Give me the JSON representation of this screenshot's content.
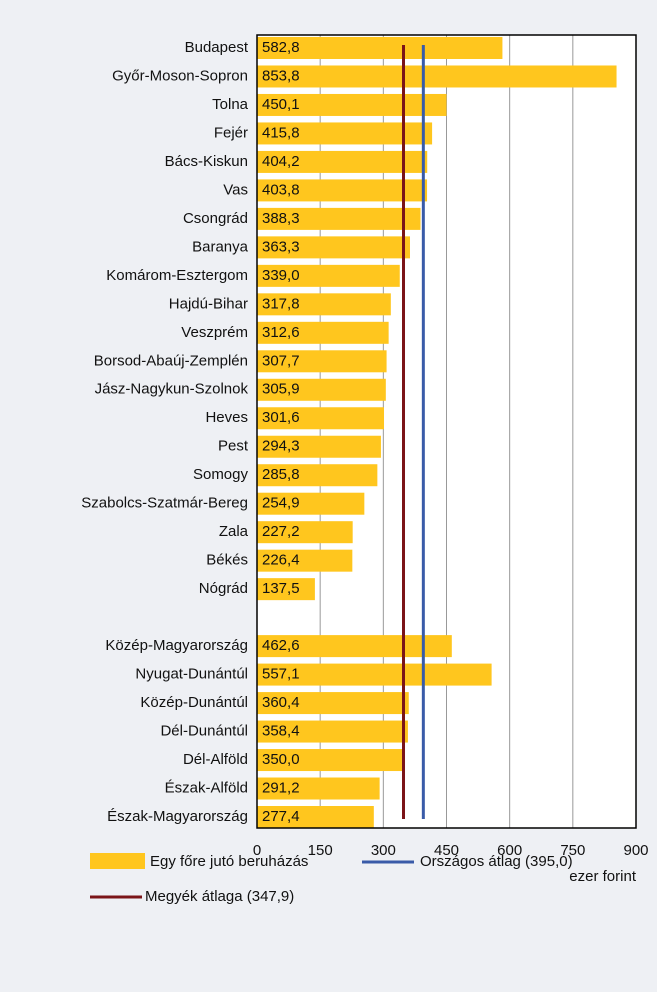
{
  "chart_data": {
    "type": "barh",
    "categories": [
      "Budapest",
      "Győr-Moson-Sopron",
      "Tolna",
      "Fejér",
      "Bács-Kiskun",
      "Vas",
      "Csongrád",
      "Baranya",
      "Komárom-Esztergom",
      "Hajdú-Bihar",
      "Veszprém",
      "Borsod-Abaúj-Zemplén",
      "Jász-Nagykun-Szolnok",
      "Heves",
      "Pest",
      "Somogy",
      "Szabolcs-Szatmár-Bereg",
      "Zala",
      "Békés",
      "Nógrád",
      null,
      "Közép-Magyarország",
      "Nyugat-Dunántúl",
      "Közép-Dunántúl",
      "Dél-Dunántúl",
      "Dél-Alföld",
      "Észak-Alföld",
      "Észak-Magyarország"
    ],
    "series": [
      {
        "name": "Egy főre jutó beruházás",
        "color": "#ffc61e",
        "values": [
          582.8,
          853.8,
          450.1,
          415.8,
          404.2,
          403.8,
          388.3,
          363.3,
          339.0,
          317.8,
          312.6,
          307.7,
          305.9,
          301.6,
          294.3,
          285.8,
          254.9,
          227.2,
          226.4,
          137.5,
          null,
          462.6,
          557.1,
          360.4,
          358.4,
          350.0,
          291.2,
          277.4
        ],
        "value_labels": [
          "582,8",
          "853,8",
          "450,1",
          "415,8",
          "404,2",
          "403,8",
          "388,3",
          "363,3",
          "339,0",
          "317,8",
          "312,6",
          "307,7",
          "305,9",
          "301,6",
          "294,3",
          "285,8",
          "254,9",
          "227,2",
          "226,4",
          "137,5",
          null,
          "462,6",
          "557,1",
          "360,4",
          "358,4",
          "350,0",
          "291,2",
          "277,4"
        ]
      }
    ],
    "reference_lines": [
      {
        "name": "Országos átlag (395,0)",
        "value": 395.0,
        "color": "#3a5ba8"
      },
      {
        "name": "Megyék átlaga (347,9)",
        "value": 347.9,
        "color": "#7b1418"
      }
    ],
    "xlim": [
      0,
      900
    ],
    "xticks": [
      0,
      150,
      300,
      450,
      600,
      750,
      900
    ],
    "x_axis_label": "ezer forint",
    "grid": true
  }
}
